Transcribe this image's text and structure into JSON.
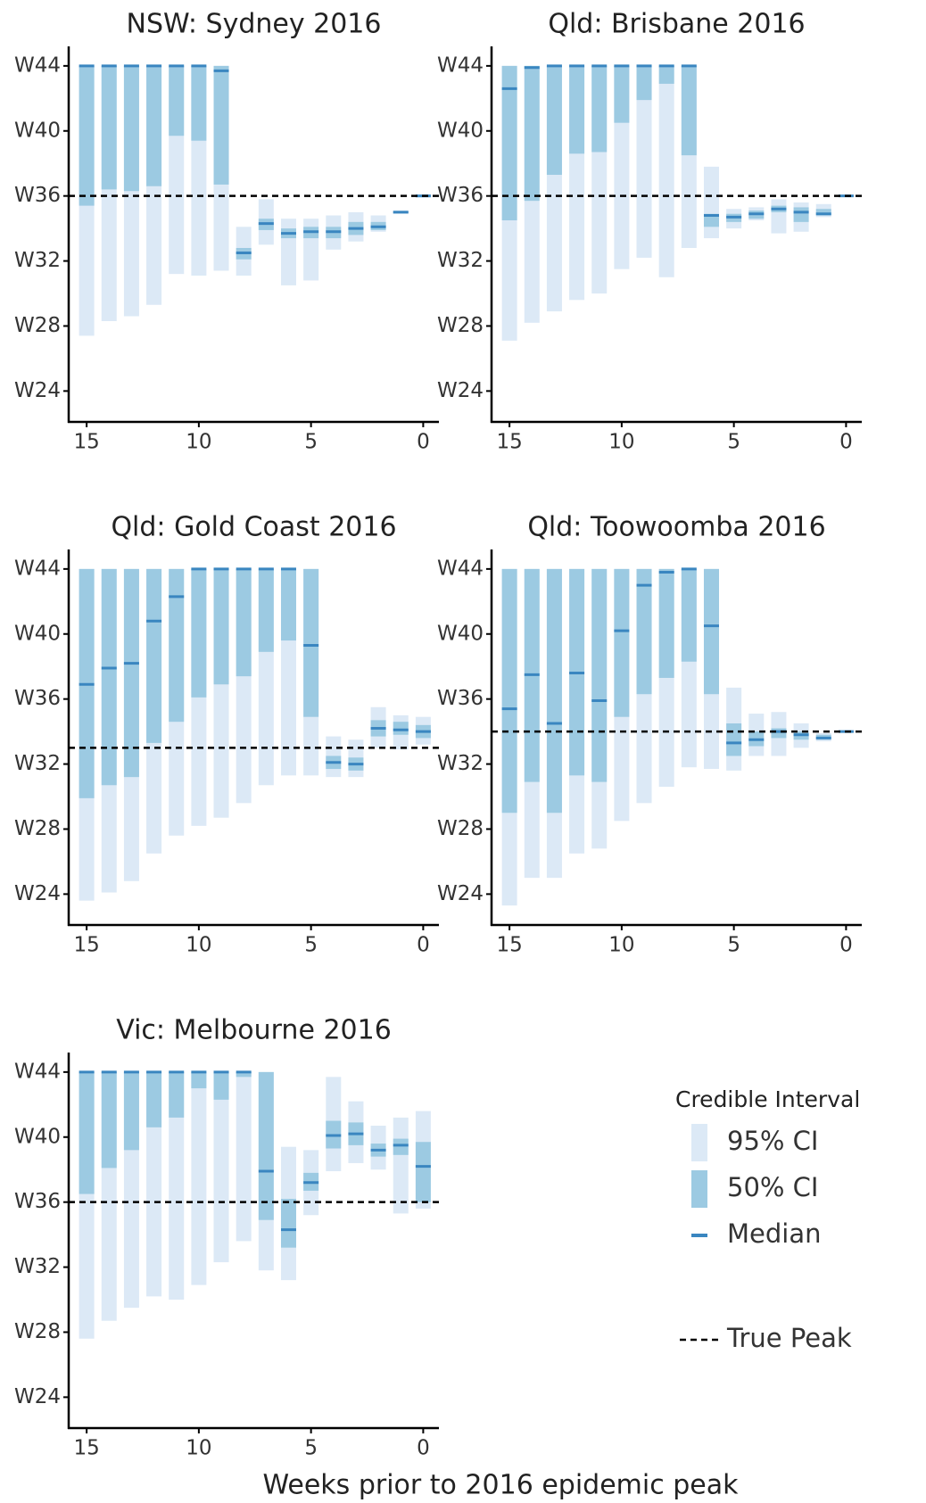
{
  "x_label": "Weeks prior to 2016 epidemic peak",
  "legend": {
    "title": "Credible Interval",
    "items": [
      {
        "name": "95% CI",
        "color": "#dce9f6"
      },
      {
        "name": "50% CI",
        "color": "#9ccae2"
      },
      {
        "name": "Median",
        "color": "#3a86c0"
      },
      {
        "name": "True Peak",
        "color": "#000000"
      }
    ]
  },
  "chart_data": [
    {
      "type": "interval",
      "title": "NSW: Sydney 2016",
      "x": [
        15,
        14,
        13,
        12,
        11,
        10,
        9,
        8,
        7,
        6,
        5,
        4,
        3,
        2,
        1,
        0
      ],
      "ci95_high": [
        44,
        44,
        44,
        44,
        44,
        44,
        44,
        34.1,
        35.8,
        34.6,
        34.6,
        34.8,
        35.0,
        34.8,
        35.1,
        36.1
      ],
      "ci95_low": [
        27.4,
        28.3,
        28.6,
        29.3,
        31.2,
        31.1,
        31.4,
        31.1,
        33.0,
        30.5,
        30.8,
        32.7,
        33.2,
        33.8,
        34.9,
        35.9
      ],
      "ci50_high": [
        44,
        44,
        44,
        44,
        44,
        44,
        44,
        32.8,
        34.6,
        34.0,
        34.1,
        34.1,
        34.4,
        34.4,
        35.05,
        36.05
      ],
      "ci50_low": [
        35.4,
        36.4,
        36.3,
        36.6,
        39.7,
        39.4,
        36.7,
        32.1,
        33.9,
        33.4,
        33.4,
        33.4,
        33.6,
        33.9,
        34.95,
        35.95
      ],
      "median": [
        44,
        44,
        44,
        44,
        44,
        44,
        43.7,
        32.5,
        34.3,
        33.7,
        33.8,
        33.8,
        34.0,
        34.1,
        35.0,
        36.0
      ],
      "true_peak": 36,
      "xlim": [
        15.8,
        -0.7
      ],
      "ylim": [
        22.1,
        45.2
      ],
      "xticks": [
        15,
        10,
        5,
        0
      ],
      "yticks": [
        {
          "value": 24,
          "label": "W24"
        },
        {
          "value": 28,
          "label": "W28"
        },
        {
          "value": 32,
          "label": "W32"
        },
        {
          "value": 36,
          "label": "W36"
        },
        {
          "value": 40,
          "label": "W40"
        },
        {
          "value": 44,
          "label": "W44"
        }
      ]
    },
    {
      "type": "interval",
      "title": "Qld: Brisbane 2016",
      "x": [
        15,
        14,
        13,
        12,
        11,
        10,
        9,
        8,
        7,
        6,
        5,
        4,
        3,
        2,
        1,
        0
      ],
      "ci95_high": [
        44,
        44,
        44,
        44,
        44,
        44,
        44,
        44,
        44,
        37.8,
        35.2,
        35.3,
        35.8,
        35.6,
        35.5,
        36.05
      ],
      "ci95_low": [
        27.1,
        28.2,
        28.9,
        29.6,
        30.0,
        31.5,
        32.2,
        31.0,
        32.8,
        33.4,
        34.0,
        34.5,
        33.7,
        33.8,
        34.7,
        35.95
      ],
      "ci50_high": [
        44,
        44,
        44,
        44,
        44,
        44,
        44,
        44,
        44,
        34.9,
        34.9,
        35.1,
        35.4,
        35.3,
        35.2,
        36.05
      ],
      "ci50_low": [
        34.5,
        35.7,
        37.3,
        38.6,
        38.7,
        40.5,
        41.9,
        42.9,
        38.5,
        34.1,
        34.4,
        34.6,
        35.0,
        34.4,
        34.8,
        35.95
      ],
      "median": [
        42.6,
        43.9,
        44,
        44,
        44,
        44,
        44,
        44,
        44,
        34.8,
        34.7,
        34.9,
        35.2,
        35.0,
        34.9,
        36.0
      ],
      "true_peak": 36,
      "xlim": [
        15.8,
        -0.7
      ],
      "ylim": [
        22.1,
        45.2
      ],
      "xticks": [
        15,
        10,
        5,
        0
      ],
      "yticks": [
        {
          "value": 24,
          "label": "W24"
        },
        {
          "value": 28,
          "label": "W28"
        },
        {
          "value": 32,
          "label": "W32"
        },
        {
          "value": 36,
          "label": "W36"
        },
        {
          "value": 40,
          "label": "W40"
        },
        {
          "value": 44,
          "label": "W44"
        }
      ]
    },
    {
      "type": "interval",
      "title": "Qld: Gold Coast 2016",
      "x": [
        15,
        14,
        13,
        12,
        11,
        10,
        9,
        8,
        7,
        6,
        5,
        4,
        3,
        2,
        1,
        0
      ],
      "ci95_high": [
        44,
        44,
        44,
        44,
        44,
        44,
        44,
        44,
        44,
        44,
        44,
        33.7,
        33.5,
        35.5,
        35.0,
        34.9
      ],
      "ci95_low": [
        23.6,
        24.1,
        24.8,
        26.5,
        27.6,
        28.2,
        28.7,
        29.6,
        30.7,
        31.3,
        31.3,
        31.2,
        31.2,
        33.0,
        32.9,
        33.2
      ],
      "ci50_high": [
        44,
        44,
        44,
        44,
        44,
        44,
        44,
        44,
        44,
        44,
        44,
        32.5,
        32.4,
        34.7,
        34.6,
        34.4
      ],
      "ci50_low": [
        29.9,
        30.7,
        31.2,
        33.3,
        34.6,
        36.1,
        36.9,
        37.4,
        38.9,
        39.6,
        34.9,
        31.7,
        31.6,
        33.7,
        33.8,
        33.6
      ],
      "median": [
        36.9,
        37.9,
        38.2,
        40.8,
        42.3,
        44,
        44,
        44,
        44,
        44,
        39.3,
        32.1,
        32.0,
        34.2,
        34.1,
        34.0
      ],
      "true_peak": 33,
      "xlim": [
        15.8,
        -0.7
      ],
      "ylim": [
        22.1,
        45.2
      ],
      "xticks": [
        15,
        10,
        5,
        0
      ],
      "yticks": [
        {
          "value": 24,
          "label": "W24"
        },
        {
          "value": 28,
          "label": "W28"
        },
        {
          "value": 32,
          "label": "W32"
        },
        {
          "value": 36,
          "label": "W36"
        },
        {
          "value": 40,
          "label": "W40"
        },
        {
          "value": 44,
          "label": "W44"
        }
      ]
    },
    {
      "type": "interval",
      "title": "Qld: Toowoomba 2016",
      "x": [
        15,
        14,
        13,
        12,
        11,
        10,
        9,
        8,
        7,
        6,
        5,
        4,
        3,
        2,
        1,
        0
      ],
      "ci95_high": [
        44,
        44,
        44,
        44,
        44,
        44,
        44,
        44,
        44,
        44,
        36.7,
        35.1,
        35.2,
        34.5,
        33.9,
        34.05
      ],
      "ci95_low": [
        23.3,
        25.0,
        25.0,
        26.5,
        26.8,
        28.5,
        29.6,
        30.6,
        31.8,
        31.7,
        31.6,
        32.5,
        32.5,
        33.0,
        33.4,
        33.95
      ],
      "ci50_high": [
        44,
        44,
        44,
        44,
        44,
        44,
        44,
        44,
        44,
        44,
        34.5,
        34.0,
        34.2,
        34.0,
        33.8,
        34.05
      ],
      "ci50_low": [
        29.0,
        30.9,
        29.0,
        31.3,
        30.9,
        34.9,
        36.3,
        37.3,
        38.3,
        36.3,
        32.5,
        33.1,
        33.6,
        33.5,
        33.5,
        33.95
      ],
      "median": [
        35.4,
        37.5,
        34.5,
        37.6,
        35.9,
        40.2,
        43.0,
        43.8,
        44,
        40.5,
        33.3,
        33.5,
        34.0,
        33.8,
        33.6,
        34.0
      ],
      "true_peak": 34,
      "xlim": [
        15.8,
        -0.7
      ],
      "ylim": [
        22.1,
        45.2
      ],
      "xticks": [
        15,
        10,
        5,
        0
      ],
      "yticks": [
        {
          "value": 24,
          "label": "W24"
        },
        {
          "value": 28,
          "label": "W28"
        },
        {
          "value": 32,
          "label": "W32"
        },
        {
          "value": 36,
          "label": "W36"
        },
        {
          "value": 40,
          "label": "W40"
        },
        {
          "value": 44,
          "label": "W44"
        }
      ]
    },
    {
      "type": "interval",
      "title": "Vic: Melbourne 2016",
      "x": [
        15,
        14,
        13,
        12,
        11,
        10,
        9,
        8,
        7,
        6,
        5,
        4,
        3,
        2,
        1,
        0
      ],
      "ci95_high": [
        44,
        44,
        44,
        44,
        44,
        44,
        44,
        44,
        44,
        39.4,
        39.2,
        43.7,
        42.2,
        40.7,
        41.2,
        41.6
      ],
      "ci95_low": [
        27.6,
        28.7,
        29.5,
        30.2,
        30.0,
        30.9,
        32.3,
        33.6,
        31.8,
        31.2,
        35.2,
        37.9,
        38.4,
        38.0,
        35.3,
        35.6
      ],
      "ci50_high": [
        44,
        44,
        44,
        44,
        44,
        44,
        44,
        44,
        44,
        36.2,
        37.8,
        41.0,
        40.9,
        39.6,
        39.9,
        39.7
      ],
      "ci50_low": [
        36.5,
        38.1,
        39.2,
        40.6,
        41.2,
        43.0,
        42.3,
        43.7,
        34.9,
        33.2,
        36.7,
        39.3,
        39.5,
        38.8,
        38.9,
        36.0
      ],
      "median": [
        44,
        44,
        44,
        44,
        44,
        44,
        44,
        44,
        37.9,
        34.3,
        37.2,
        40.1,
        40.2,
        39.2,
        39.5,
        38.2
      ],
      "true_peak": 36,
      "xlim": [
        15.8,
        -0.7
      ],
      "ylim": [
        22.1,
        45.2
      ],
      "xticks": [
        15,
        10,
        5,
        0
      ],
      "yticks": [
        {
          "value": 24,
          "label": "W24"
        },
        {
          "value": 28,
          "label": "W28"
        },
        {
          "value": 32,
          "label": "W32"
        },
        {
          "value": 36,
          "label": "W36"
        },
        {
          "value": 40,
          "label": "W40"
        },
        {
          "value": 44,
          "label": "W44"
        }
      ]
    }
  ]
}
